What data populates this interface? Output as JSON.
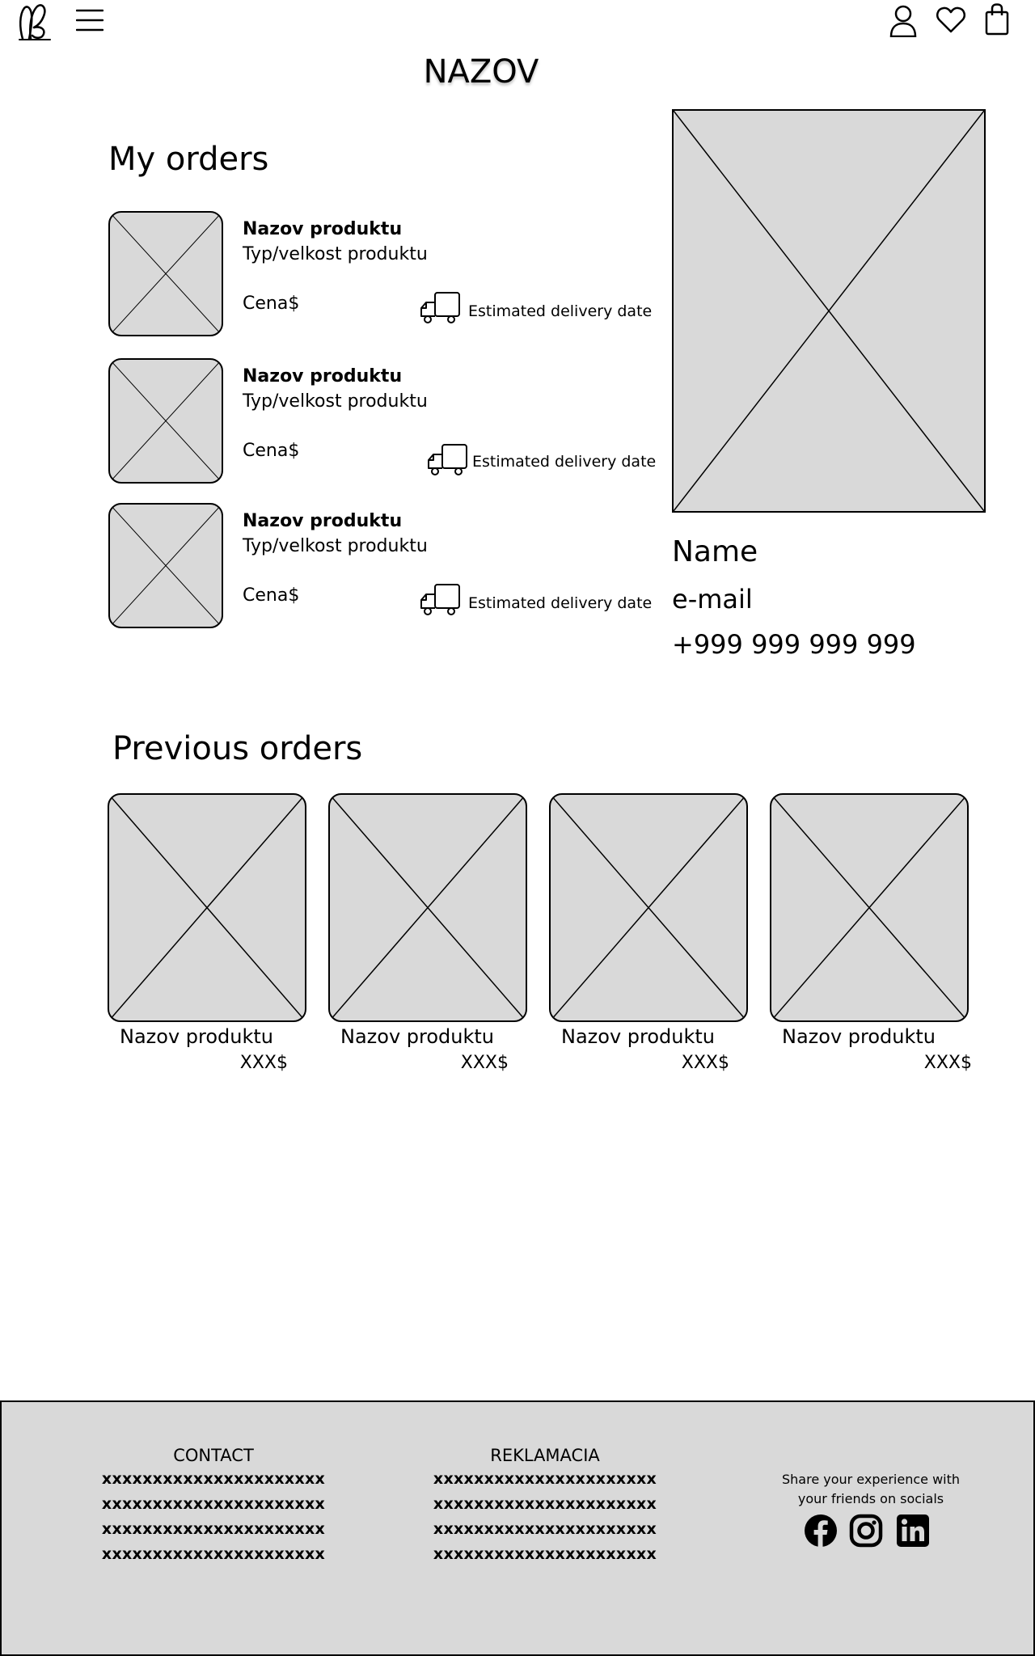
{
  "header": {
    "logo_icon": "bunny-ears-logo-icon",
    "menu_icon": "hamburger-menu-icon",
    "account_icon": "user-icon",
    "wishlist_icon": "heart-icon",
    "cart_icon": "shopping-bag-icon"
  },
  "brand": {
    "title": "NAZOV"
  },
  "my_orders": {
    "title": "My orders",
    "items": [
      {
        "name": "Nazov produktu",
        "type": "Typ/velkost produktu",
        "price": "Cena$",
        "delivery": "Estimated delivery date"
      },
      {
        "name": "Nazov produktu",
        "type": "Typ/velkost produktu",
        "price": "Cena$",
        "delivery": "Estimated delivery date"
      },
      {
        "name": "Nazov produktu",
        "type": "Typ/velkost produktu",
        "price": "Cena$",
        "delivery": "Estimated delivery date"
      }
    ]
  },
  "profile": {
    "name": "Name",
    "email": "e-mail",
    "phone": "+999 999 999 999"
  },
  "previous_orders": {
    "title": "Previous orders",
    "items": [
      {
        "name": "Nazov produktu",
        "price": "XXX$"
      },
      {
        "name": "Nazov produktu",
        "price": "XXX$"
      },
      {
        "name": "Nazov produktu",
        "price": "XXX$"
      },
      {
        "name": "Nazov produktu",
        "price": "XXX$"
      }
    ]
  },
  "footer": {
    "contact": {
      "title": "CONTACT",
      "lines": [
        "xxxxxxxxxxxxxxxxxxxxxx",
        "xxxxxxxxxxxxxxxxxxxxxx",
        "xxxxxxxxxxxxxxxxxxxxxx",
        "xxxxxxxxxxxxxxxxxxxxxx"
      ]
    },
    "reklamacia": {
      "title": "REKLAMACIA",
      "lines": [
        "xxxxxxxxxxxxxxxxxxxxxx",
        "xxxxxxxxxxxxxxxxxxxxxx",
        "xxxxxxxxxxxxxxxxxxxxxx",
        "xxxxxxxxxxxxxxxxxxxxxx"
      ]
    },
    "share_line1": "Share your experience with",
    "share_line2": "your friends on socials",
    "socials": [
      "facebook-icon",
      "instagram-icon",
      "linkedin-icon"
    ]
  }
}
